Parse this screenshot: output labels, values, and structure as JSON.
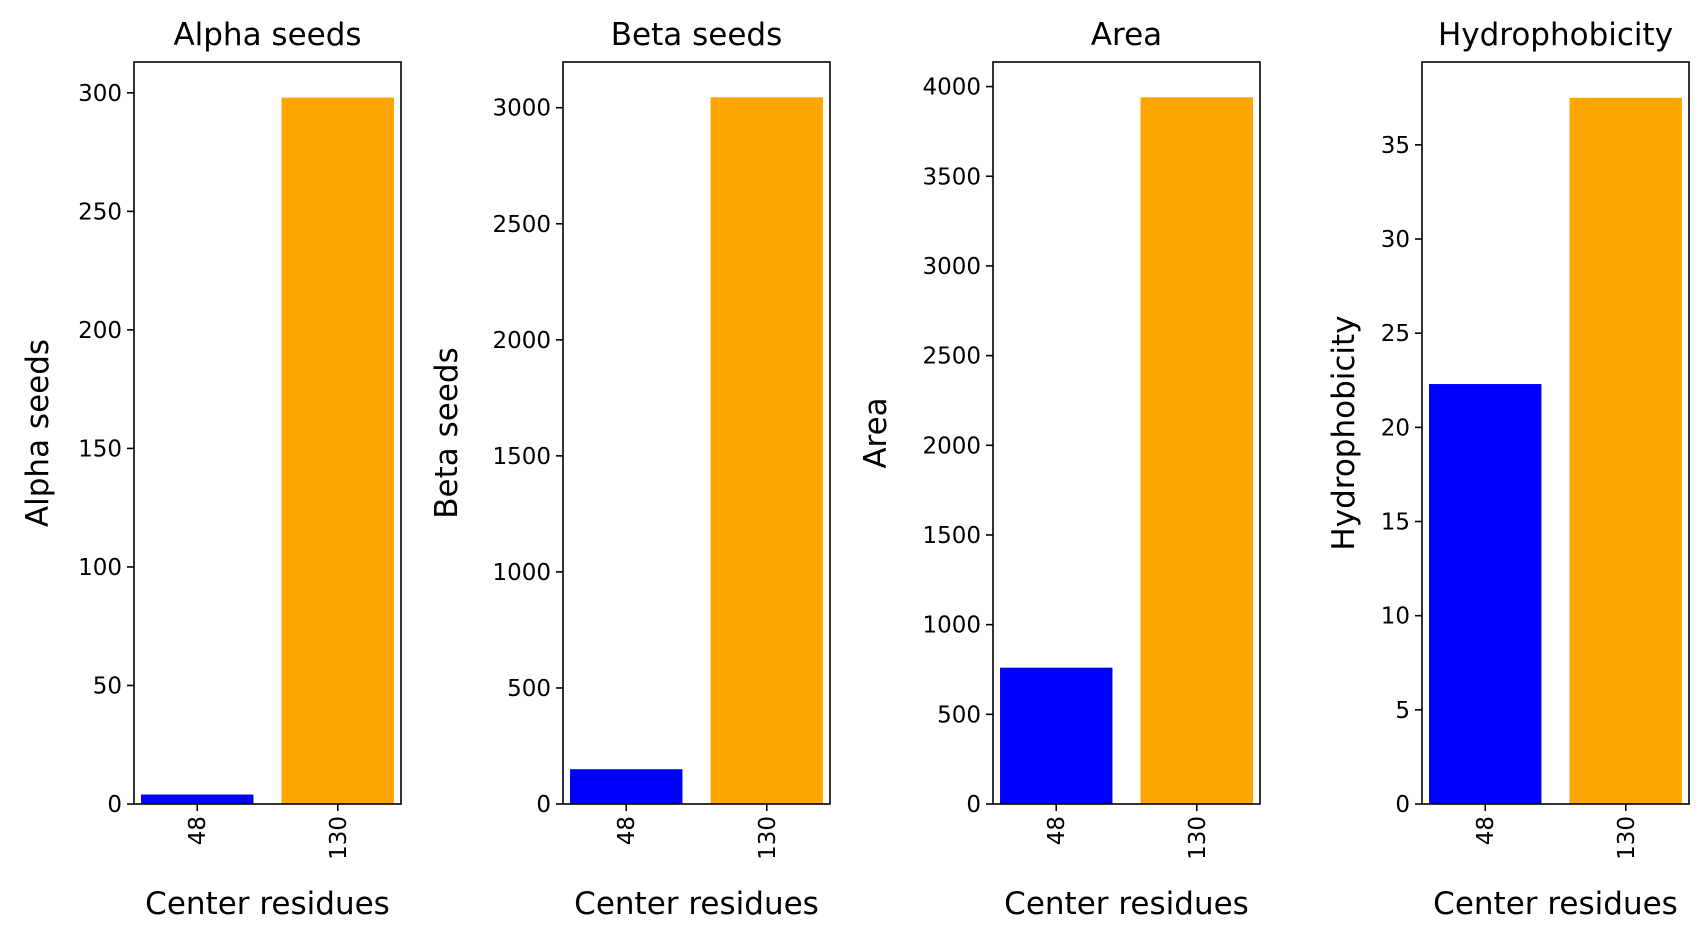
{
  "chart_data": [
    {
      "type": "bar",
      "title": "Alpha seeds",
      "xlabel": "Center residues",
      "ylabel": "Alpha seeds",
      "categories": [
        "48",
        "130"
      ],
      "values": [
        4,
        298
      ],
      "colors": [
        "#0000ff",
        "#ffa500"
      ],
      "ylim": [
        0,
        313
      ],
      "yticks": [
        0,
        50,
        100,
        150,
        200,
        250,
        300
      ],
      "grid": false,
      "legend": "none"
    },
    {
      "type": "bar",
      "title": "Beta seeds",
      "xlabel": "Center residues",
      "ylabel": "Beta seeds",
      "categories": [
        "48",
        "130"
      ],
      "values": [
        150,
        3045
      ],
      "colors": [
        "#0000ff",
        "#ffa500"
      ],
      "ylim": [
        0,
        3197
      ],
      "yticks": [
        0,
        500,
        1000,
        1500,
        2000,
        2500,
        3000
      ],
      "grid": false,
      "legend": "none"
    },
    {
      "type": "bar",
      "title": "Area",
      "xlabel": "Center residues",
      "ylabel": "Area",
      "categories": [
        "48",
        "130"
      ],
      "values": [
        760,
        3940
      ],
      "colors": [
        "#0000ff",
        "#ffa500"
      ],
      "ylim": [
        0,
        4137
      ],
      "yticks": [
        0,
        500,
        1000,
        1500,
        2000,
        2500,
        3000,
        3500,
        4000
      ],
      "grid": false,
      "legend": "none"
    },
    {
      "type": "bar",
      "title": "Hydrophobicity",
      "xlabel": "Center residues",
      "ylabel": "Hydrophobicity",
      "categories": [
        "48",
        "130"
      ],
      "values": [
        22.3,
        37.5
      ],
      "colors": [
        "#0000ff",
        "#ffa500"
      ],
      "ylim": [
        0,
        39.4
      ],
      "yticks": [
        0,
        5,
        10,
        15,
        20,
        25,
        30,
        35
      ],
      "grid": false,
      "legend": "none"
    }
  ]
}
